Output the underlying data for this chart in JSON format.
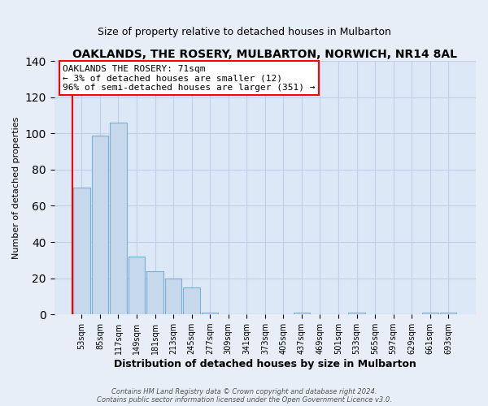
{
  "title": "OAKLANDS, THE ROSERY, MULBARTON, NORWICH, NR14 8AL",
  "subtitle": "Size of property relative to detached houses in Mulbarton",
  "xlabel": "Distribution of detached houses by size in Mulbarton",
  "ylabel": "Number of detached properties",
  "bar_labels": [
    "53sqm",
    "85sqm",
    "117sqm",
    "149sqm",
    "181sqm",
    "213sqm",
    "245sqm",
    "277sqm",
    "309sqm",
    "341sqm",
    "373sqm",
    "405sqm",
    "437sqm",
    "469sqm",
    "501sqm",
    "533sqm",
    "565sqm",
    "597sqm",
    "629sqm",
    "661sqm",
    "693sqm"
  ],
  "bar_values": [
    70,
    99,
    106,
    32,
    24,
    20,
    15,
    1,
    0,
    0,
    0,
    0,
    1,
    0,
    0,
    1,
    0,
    0,
    0,
    1,
    1
  ],
  "bar_color": "#c5d8ec",
  "bar_edge_color": "#7bafd4",
  "annotation_line1": "OAKLANDS THE ROSERY: 71sqm",
  "annotation_line2": "← 3% of detached houses are smaller (12)",
  "annotation_line3": "96% of semi-detached houses are larger (351) →",
  "property_line_xindex": -0.5,
  "ylim": [
    0,
    140
  ],
  "yticks": [
    0,
    20,
    40,
    60,
    80,
    100,
    120,
    140
  ],
  "footer_line1": "Contains HM Land Registry data © Crown copyright and database right 2024.",
  "footer_line2": "Contains public sector information licensed under the Open Government Licence v3.0.",
  "bg_color": "#e8eef8",
  "plot_bg_color": "#dce8f5",
  "grid_color": "#c0d0e8"
}
